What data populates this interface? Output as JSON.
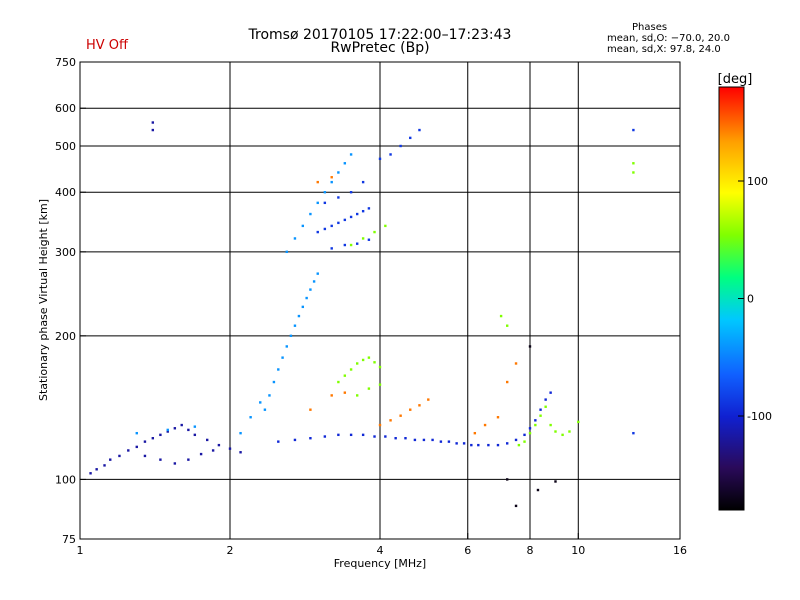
{
  "header": {
    "title_line1": "Tromsø 20170105 17:22:00–17:23:43",
    "title_line2": "RwPretec (Bp)",
    "status": "HV Off",
    "status_color": "#cc0000",
    "phases_heading": "Phases",
    "phases_o": "mean, sd,O: −70.0, 20.0",
    "phases_x": "mean, sd,X:  97.8, 24.0"
  },
  "chart_data": {
    "type": "scatter",
    "xlabel": "Frequency [MHz]",
    "ylabel": "Stationary phase Virtual Height [km]",
    "x_scale": "log",
    "y_scale": "log",
    "xlim": [
      1,
      16
    ],
    "ylim": [
      75,
      750
    ],
    "x_ticks": [
      1,
      2,
      4,
      6,
      8,
      10,
      16
    ],
    "y_ticks": [
      75,
      100,
      200,
      300,
      400,
      500,
      600,
      750
    ],
    "x_grid": [
      2,
      4,
      6,
      8,
      10
    ],
    "y_grid": [
      100,
      200,
      300,
      400,
      500,
      600
    ],
    "grid": true,
    "colorbar": {
      "label": "[deg]",
      "range": [
        -180,
        180
      ],
      "ticks": [
        100,
        0,
        -100
      ],
      "colors": [
        "#000000",
        "#2a0a5a",
        "#1020d0",
        "#1060ff",
        "#00c8ff",
        "#00ff80",
        "#80ff00",
        "#ffff00",
        "#ffa000",
        "#ff0000"
      ]
    },
    "series": [
      {
        "color_phase": -115,
        "points": [
          [
            1.05,
            103
          ],
          [
            1.08,
            105
          ],
          [
            1.12,
            107
          ],
          [
            1.15,
            110
          ],
          [
            1.2,
            112
          ],
          [
            1.25,
            115
          ],
          [
            1.3,
            117
          ],
          [
            1.35,
            120
          ],
          [
            1.4,
            122
          ],
          [
            1.45,
            124
          ],
          [
            1.5,
            126
          ],
          [
            1.55,
            128
          ],
          [
            1.6,
            130
          ],
          [
            1.65,
            127
          ],
          [
            1.7,
            124
          ],
          [
            1.8,
            121
          ],
          [
            1.9,
            118
          ],
          [
            2.0,
            116
          ],
          [
            2.1,
            114
          ],
          [
            1.35,
            112
          ],
          [
            1.45,
            110
          ],
          [
            1.55,
            108
          ],
          [
            1.65,
            110
          ],
          [
            1.75,
            113
          ],
          [
            1.85,
            115
          ],
          [
            1.4,
            540
          ],
          [
            1.4,
            560
          ]
        ]
      },
      {
        "color_phase": -95,
        "points": [
          [
            2.5,
            120
          ],
          [
            2.7,
            121
          ],
          [
            2.9,
            122
          ],
          [
            3.1,
            123
          ],
          [
            3.3,
            124
          ],
          [
            3.5,
            124
          ],
          [
            3.7,
            124
          ],
          [
            3.9,
            123
          ],
          [
            4.1,
            123
          ],
          [
            4.3,
            122
          ],
          [
            4.5,
            122
          ],
          [
            4.7,
            121
          ],
          [
            4.9,
            121
          ],
          [
            5.1,
            121
          ],
          [
            5.3,
            120
          ],
          [
            5.5,
            120
          ],
          [
            5.7,
            119
          ],
          [
            5.9,
            119
          ],
          [
            6.1,
            118
          ],
          [
            6.3,
            118
          ],
          [
            6.6,
            118
          ],
          [
            6.9,
            118
          ],
          [
            7.2,
            119
          ],
          [
            7.5,
            121
          ],
          [
            7.8,
            124
          ],
          [
            8.0,
            128
          ],
          [
            8.2,
            133
          ],
          [
            8.4,
            140
          ],
          [
            8.6,
            147
          ],
          [
            8.8,
            152
          ]
        ]
      },
      {
        "color_phase": -85,
        "points": [
          [
            3.0,
            330
          ],
          [
            3.1,
            335
          ],
          [
            3.2,
            340
          ],
          [
            3.3,
            345
          ],
          [
            3.4,
            350
          ],
          [
            3.5,
            355
          ],
          [
            3.6,
            360
          ],
          [
            3.7,
            365
          ],
          [
            3.8,
            370
          ],
          [
            4.0,
            470
          ],
          [
            4.2,
            480
          ],
          [
            4.4,
            500
          ],
          [
            4.6,
            520
          ],
          [
            4.8,
            540
          ],
          [
            3.2,
            305
          ],
          [
            3.4,
            310
          ],
          [
            3.6,
            312
          ],
          [
            3.8,
            318
          ],
          [
            3.1,
            380
          ],
          [
            3.3,
            390
          ],
          [
            3.5,
            400
          ],
          [
            3.7,
            420
          ],
          [
            12.9,
            540
          ],
          [
            12.9,
            125
          ]
        ]
      },
      {
        "color_phase": -40,
        "points": [
          [
            2.35,
            140
          ],
          [
            2.4,
            150
          ],
          [
            2.45,
            160
          ],
          [
            2.5,
            170
          ],
          [
            2.55,
            180
          ],
          [
            2.6,
            190
          ],
          [
            2.65,
            200
          ],
          [
            2.7,
            210
          ],
          [
            2.75,
            220
          ],
          [
            2.8,
            230
          ],
          [
            2.85,
            240
          ],
          [
            2.9,
            250
          ],
          [
            2.95,
            260
          ],
          [
            3.0,
            270
          ],
          [
            2.6,
            300
          ],
          [
            2.7,
            320
          ],
          [
            2.8,
            340
          ],
          [
            2.9,
            360
          ],
          [
            3.0,
            380
          ],
          [
            3.1,
            400
          ],
          [
            3.2,
            420
          ],
          [
            3.3,
            440
          ],
          [
            3.4,
            460
          ],
          [
            3.5,
            480
          ],
          [
            2.1,
            125
          ],
          [
            2.2,
            135
          ],
          [
            2.3,
            145
          ],
          [
            1.3,
            125
          ],
          [
            1.5,
            127
          ],
          [
            1.7,
            129
          ]
        ]
      },
      {
        "color_phase": 60,
        "points": [
          [
            3.3,
            160
          ],
          [
            3.4,
            165
          ],
          [
            3.5,
            170
          ],
          [
            3.6,
            175
          ],
          [
            3.7,
            178
          ],
          [
            3.8,
            180
          ],
          [
            3.9,
            176
          ],
          [
            4.0,
            172
          ],
          [
            3.6,
            150
          ],
          [
            3.8,
            155
          ],
          [
            4.0,
            158
          ],
          [
            3.5,
            310
          ],
          [
            3.7,
            320
          ],
          [
            3.9,
            330
          ],
          [
            4.1,
            340
          ],
          [
            7.6,
            118
          ],
          [
            7.8,
            120
          ],
          [
            8.0,
            125
          ],
          [
            8.2,
            130
          ],
          [
            8.4,
            136
          ],
          [
            8.6,
            142
          ],
          [
            8.8,
            130
          ],
          [
            9.0,
            126
          ],
          [
            9.3,
            124
          ],
          [
            9.6,
            126
          ],
          [
            10.0,
            132
          ],
          [
            12.9,
            440
          ],
          [
            12.9,
            460
          ],
          [
            7.0,
            220
          ],
          [
            7.2,
            210
          ]
        ]
      },
      {
        "color_phase": 150,
        "points": [
          [
            4.0,
            130
          ],
          [
            4.2,
            133
          ],
          [
            4.4,
            136
          ],
          [
            4.6,
            140
          ],
          [
            4.8,
            143
          ],
          [
            5.0,
            147
          ],
          [
            3.2,
            150
          ],
          [
            3.4,
            152
          ],
          [
            2.9,
            140
          ],
          [
            6.2,
            125
          ],
          [
            6.5,
            130
          ],
          [
            6.9,
            135
          ],
          [
            7.2,
            160
          ],
          [
            7.5,
            175
          ],
          [
            3.0,
            420
          ],
          [
            3.2,
            430
          ]
        ]
      },
      {
        "color_phase": -170,
        "points": [
          [
            8.0,
            190
          ],
          [
            7.2,
            100
          ],
          [
            7.5,
            88
          ],
          [
            8.3,
            95
          ],
          [
            9.0,
            99
          ]
        ]
      }
    ]
  }
}
